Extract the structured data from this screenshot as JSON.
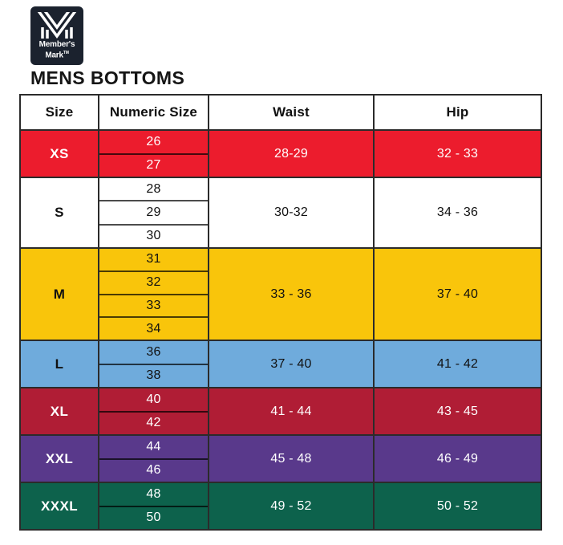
{
  "logo": {
    "brand_line1": "Member's",
    "brand_line2": "Mark",
    "tm": "TM",
    "bg_color": "#1B222E",
    "mark_color": "#FFFFFF"
  },
  "title": "MENS BOTTOMS",
  "table": {
    "headers": [
      "Size",
      "Numeric Size",
      "Waist",
      "Hip"
    ],
    "rows": [
      {
        "size": "XS",
        "numeric": [
          "26",
          "27"
        ],
        "waist": "28-29",
        "hip": "32 - 33",
        "bg": "#EC1C2D",
        "fg": "#FFFFFF"
      },
      {
        "size": "S",
        "numeric": [
          "28",
          "29",
          "30"
        ],
        "waist": "30-32",
        "hip": "34 - 36",
        "bg": "#FFFFFF",
        "fg": "#111111"
      },
      {
        "size": "M",
        "numeric": [
          "31",
          "32",
          "33",
          "34"
        ],
        "waist": "33 - 36",
        "hip": "37 - 40",
        "bg": "#F9C50B",
        "fg": "#111111"
      },
      {
        "size": "L",
        "numeric": [
          "36",
          "38"
        ],
        "waist": "37 - 40",
        "hip": "41 - 42",
        "bg": "#6FABDC",
        "fg": "#111111"
      },
      {
        "size": "XL",
        "numeric": [
          "40",
          "42"
        ],
        "waist": "41 - 44",
        "hip": "43 - 45",
        "bg": "#B01D35",
        "fg": "#FFFFFF"
      },
      {
        "size": "XXL",
        "numeric": [
          "44",
          "46"
        ],
        "waist": "45 - 48",
        "hip": "46 - 49",
        "bg": "#59398B",
        "fg": "#FFFFFF"
      },
      {
        "size": "XXXL",
        "numeric": [
          "48",
          "50"
        ],
        "waist": "49 - 52",
        "hip": "50 - 52",
        "bg": "#0D624C",
        "fg": "#FFFFFF"
      }
    ]
  },
  "chart_data": {
    "type": "table",
    "title": "MENS BOTTOMS",
    "columns": [
      "Size",
      "Numeric Size",
      "Waist",
      "Hip"
    ],
    "rows": [
      [
        "XS",
        "26, 27",
        "28-29",
        "32 - 33"
      ],
      [
        "S",
        "28, 29, 30",
        "30-32",
        "34 - 36"
      ],
      [
        "M",
        "31, 32, 33, 34",
        "33 - 36",
        "37 - 40"
      ],
      [
        "L",
        "36, 38",
        "37 - 40",
        "41 - 42"
      ],
      [
        "XL",
        "40, 42",
        "41 - 44",
        "43 - 45"
      ],
      [
        "XXL",
        "44, 46",
        "45 - 48",
        "46 - 49"
      ],
      [
        "XXXL",
        "48, 50",
        "49 - 52",
        "50 - 52"
      ]
    ],
    "layout": {
      "row_band_colors": [
        "#EC1C2D",
        "#FFFFFF",
        "#F9C50B",
        "#6FABDC",
        "#B01D35",
        "#59398B",
        "#0D624C"
      ],
      "border_color": "#2B2B2B",
      "header_background": "#FFFFFF"
    }
  }
}
